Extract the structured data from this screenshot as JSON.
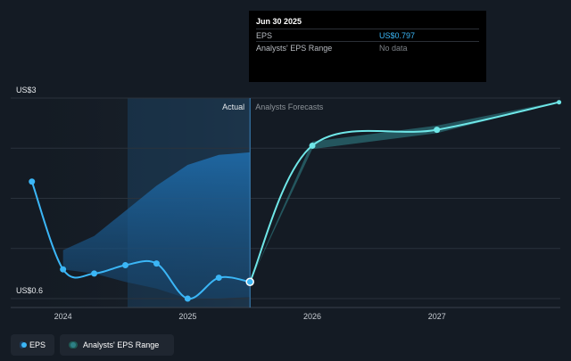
{
  "tooltip": {
    "date": "Jun 30 2025",
    "rows": [
      {
        "label": "EPS",
        "value": "US$0.797",
        "color": "#3bb6f6"
      },
      {
        "label": "Analysts' EPS Range",
        "value": "No data",
        "color": "#7d8288"
      }
    ]
  },
  "legend": {
    "eps_label": "EPS",
    "range_label": "Analysts' EPS Range"
  },
  "colors": {
    "background": "#141b24",
    "eps_line": "#3bb6f6",
    "forecast_line": "#6fe7e8",
    "range_band": "#2e7f86"
  },
  "chart_data": {
    "type": "line",
    "ylim": [
      0.6,
      3.0
    ],
    "y_tick_labels": [
      {
        "value": 3.0,
        "label": "US$3"
      },
      {
        "value": 0.6,
        "label": "US$0.6"
      }
    ],
    "x_ticks": [
      "2024",
      "2025",
      "2026",
      "2027"
    ],
    "x_tick_values": [
      2024.0,
      2025.0,
      2026.0,
      2027.0
    ],
    "xlim": [
      2023.58,
      2027.99
    ],
    "divider_x": 2025.5,
    "past_label": "Actual",
    "future_label": "Analysts Forecasts",
    "grid": true,
    "legend_position": "bottom-left",
    "series": [
      {
        "name": "EPS",
        "kind": "actual",
        "x": [
          2023.75,
          2024.0,
          2024.25,
          2024.5,
          2024.75,
          2025.0,
          2025.25,
          2025.5
        ],
        "y": [
          2.0,
          0.95,
          0.9,
          1.0,
          1.02,
          0.6,
          0.85,
          0.8
        ]
      },
      {
        "name": "Analysts Forecasts",
        "kind": "forecast",
        "x": [
          2025.5,
          2026.0,
          2027.0,
          2027.98
        ],
        "y": [
          0.8,
          2.43,
          2.62,
          2.95
        ]
      }
    ],
    "actual_range_band": {
      "x": [
        2024.0,
        2024.25,
        2024.5,
        2024.75,
        2025.0,
        2025.25,
        2025.5
      ],
      "low": [
        0.95,
        0.9,
        0.8,
        0.72,
        0.6,
        0.6,
        0.62
      ],
      "high": [
        1.18,
        1.35,
        1.65,
        1.95,
        2.2,
        2.32,
        2.35
      ]
    },
    "forecast_range_band": {
      "x": [
        2025.5,
        2026.0,
        2027.0,
        2027.98
      ],
      "low": [
        0.8,
        2.39,
        2.58,
        2.95
      ],
      "high": [
        0.8,
        2.48,
        2.67,
        2.96
      ]
    }
  }
}
